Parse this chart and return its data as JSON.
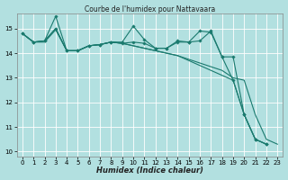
{
  "title": "Courbe de l'humidex pour Nattavaara",
  "xlabel": "Humidex (Indice chaleur)",
  "bg_color": "#b2e0e0",
  "grid_color": "#ffffff",
  "line_color": "#1a7a6e",
  "xlim": [
    -0.5,
    23.5
  ],
  "ylim": [
    9.8,
    15.6
  ],
  "yticks": [
    10,
    11,
    12,
    13,
    14,
    15
  ],
  "xticks": [
    0,
    1,
    2,
    3,
    4,
    5,
    6,
    7,
    8,
    9,
    10,
    11,
    12,
    13,
    14,
    15,
    16,
    17,
    18,
    19,
    20,
    21,
    22,
    23
  ],
  "series": [
    {
      "x": [
        0,
        1,
        2,
        3,
        4,
        5,
        6,
        7,
        8,
        9,
        10,
        11,
        12,
        13,
        14,
        15,
        16,
        17,
        18,
        19,
        20,
        21,
        22,
        23
      ],
      "y": [
        14.8,
        14.45,
        14.5,
        15.5,
        14.1,
        14.1,
        14.3,
        14.35,
        14.45,
        14.45,
        15.1,
        14.55,
        14.2,
        14.2,
        14.5,
        14.45,
        14.5,
        14.9,
        13.85,
        12.9,
        11.5,
        10.5,
        10.3,
        null
      ],
      "markers": true
    },
    {
      "x": [
        0,
        1,
        2,
        3,
        4,
        5,
        6,
        7,
        8,
        9,
        10,
        11,
        12,
        13,
        14,
        15,
        16,
        17,
        18,
        19,
        20,
        21,
        22,
        23
      ],
      "y": [
        14.8,
        14.45,
        14.5,
        15.0,
        14.1,
        14.1,
        14.3,
        14.35,
        14.45,
        14.4,
        14.45,
        14.4,
        14.2,
        14.2,
        14.45,
        14.45,
        14.9,
        14.85,
        13.85,
        13.85,
        11.5,
        10.5,
        10.3,
        null
      ],
      "markers": true
    },
    {
      "x": [
        0,
        1,
        2,
        3,
        4,
        5,
        6,
        7,
        8,
        9,
        10,
        11,
        12,
        13,
        14,
        15,
        16,
        17,
        18,
        19,
        20,
        21,
        22,
        23
      ],
      "y": [
        14.8,
        14.45,
        14.5,
        15.0,
        14.1,
        14.1,
        14.3,
        14.35,
        14.45,
        14.4,
        14.3,
        14.2,
        14.1,
        14.0,
        13.9,
        13.75,
        13.6,
        13.45,
        13.3,
        13.0,
        12.9,
        11.5,
        10.5,
        10.3
      ],
      "markers": false
    },
    {
      "x": [
        0,
        1,
        2,
        3,
        4,
        5,
        6,
        7,
        8,
        9,
        10,
        11,
        12,
        13,
        14,
        15,
        16,
        17,
        18,
        19,
        20,
        21,
        22,
        23
      ],
      "y": [
        14.8,
        14.45,
        14.45,
        14.95,
        14.1,
        14.1,
        14.3,
        14.35,
        14.45,
        14.4,
        14.3,
        14.2,
        14.1,
        14.0,
        13.9,
        13.7,
        13.5,
        13.3,
        13.1,
        12.9,
        11.5,
        10.5,
        10.3,
        null
      ],
      "markers": false
    }
  ]
}
